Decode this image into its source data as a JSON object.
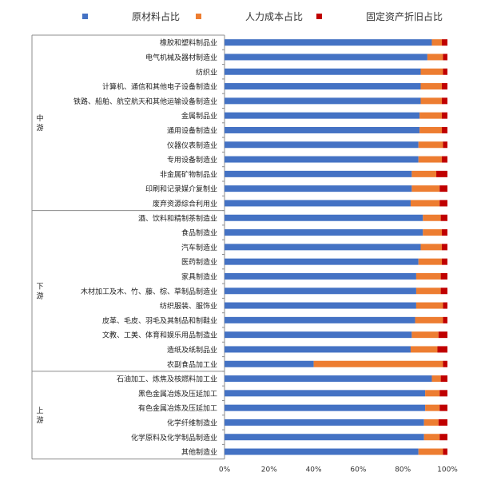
{
  "chart_data": {
    "type": "bar",
    "orientation": "horizontal",
    "stacked": true,
    "percent_stacked": true,
    "legend": [
      {
        "name": "原材料占比",
        "color": "#4472c4"
      },
      {
        "name": "人力成本占比",
        "color": "#ed7d31"
      },
      {
        "name": "固定资产折旧占比",
        "color": "#c00000"
      }
    ],
    "legend_position": "top",
    "xlim": [
      0,
      100
    ],
    "x_ticks": [
      "0%",
      "20%",
      "40%",
      "60%",
      "80%",
      "100%"
    ],
    "grid": false,
    "groups": [
      {
        "label": "中游",
        "categories": [
          {
            "label": "橡胶和塑料制品业",
            "values": [
              93,
              4.5,
              2.5
            ]
          },
          {
            "label": "电气机械及器材制造业",
            "values": [
              91,
              7,
              2
            ]
          },
          {
            "label": "纺织业",
            "values": [
              88,
              10,
              2
            ]
          },
          {
            "label": "计算机、通信和其他电子设备制造业",
            "values": [
              88,
              9.5,
              2.5
            ]
          },
          {
            "label": "铁路、船舶、航空航天和其他运输设备制造业",
            "values": [
              88,
              9.5,
              2.5
            ]
          },
          {
            "label": "金属制品业",
            "values": [
              87.5,
              10,
              2.5
            ]
          },
          {
            "label": "通用设备制造业",
            "values": [
              87.5,
              10,
              2.5
            ]
          },
          {
            "label": "仪器仪表制造业",
            "values": [
              87,
              11,
              2
            ]
          },
          {
            "label": "专用设备制造业",
            "values": [
              87,
              10.5,
              2.5
            ]
          },
          {
            "label": "非金属矿物制品业",
            "values": [
              84,
              11,
              5
            ]
          },
          {
            "label": "印刷和记录媒介复制业",
            "values": [
              84,
              12.5,
              3.5
            ]
          },
          {
            "label": "废弃资源综合利用业",
            "values": [
              83.5,
              13,
              3.5
            ]
          }
        ]
      },
      {
        "label": "下游",
        "categories": [
          {
            "label": "酒、饮料和精制茶制造业",
            "values": [
              89,
              8,
              3
            ]
          },
          {
            "label": "食品制造业",
            "values": [
              89,
              8.5,
              2.5
            ]
          },
          {
            "label": "汽车制造业",
            "values": [
              88,
              9.5,
              2.5
            ]
          },
          {
            "label": "医药制造业",
            "values": [
              87,
              10.5,
              2.5
            ]
          },
          {
            "label": "家具制造业",
            "values": [
              86,
              11,
              3
            ]
          },
          {
            "label": "木材加工及木、竹、藤、棕、草制品制造业",
            "values": [
              86,
              11,
              3
            ]
          },
          {
            "label": "纺织服装、服饰业",
            "values": [
              86,
              12,
              2
            ]
          },
          {
            "label": "皮革、毛皮、羽毛及其制品和制鞋业",
            "values": [
              85.5,
              12.5,
              2
            ]
          },
          {
            "label": "文教、工美、体育和娱乐用品制造业",
            "values": [
              84,
              12,
              4
            ]
          },
          {
            "label": "造纸及纸制品业",
            "values": [
              83.5,
              12,
              4.5
            ]
          },
          {
            "label": "农副食品加工业",
            "values": [
              40,
              58,
              2
            ]
          }
        ]
      },
      {
        "label": "上游",
        "categories": [
          {
            "label": "石油加工、炼焦及核燃料加工业",
            "values": [
              93,
              4,
              3
            ]
          },
          {
            "label": "黑色金属冶炼及压延加工",
            "values": [
              90,
              6.5,
              3.5
            ]
          },
          {
            "label": "有色金属冶炼及压延加工",
            "values": [
              90,
              6.5,
              3.5
            ]
          },
          {
            "label": "化学纤维制造业",
            "values": [
              89.5,
              6.5,
              4
            ]
          },
          {
            "label": "化学原料及化学制品制造业",
            "values": [
              89.5,
              7,
              3.5
            ]
          },
          {
            "label": "其他制造业",
            "values": [
              87,
              11,
              2
            ]
          }
        ]
      }
    ]
  }
}
